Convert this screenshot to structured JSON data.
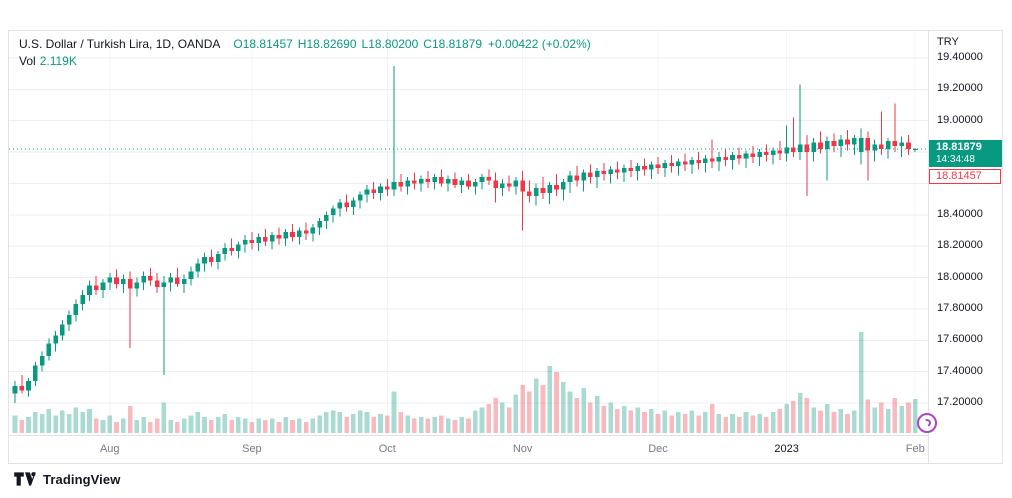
{
  "header": {
    "symbol_title": "U.S. Dollar / Turkish Lira, 1D, OANDA",
    "ohlc": {
      "o_label": "O",
      "o": "18.81457",
      "h_label": "H",
      "h": "18.82690",
      "l_label": "L",
      "l": "18.80200",
      "c_label": "C",
      "c": "18.81879",
      "change": "+0.00422 (+0.02%)"
    },
    "vol_label": "Vol",
    "vol_value": "2.119K"
  },
  "price_axis": {
    "currency": "TRY",
    "ticks": [
      {
        "v": 19.4,
        "label": "19.40000"
      },
      {
        "v": 19.2,
        "label": "19.20000"
      },
      {
        "v": 19.0,
        "label": "19.00000"
      },
      {
        "v": 18.4,
        "label": "18.40000"
      },
      {
        "v": 18.2,
        "label": "18.20000"
      },
      {
        "v": 18.0,
        "label": "18.00000"
      },
      {
        "v": 17.8,
        "label": "17.80000"
      },
      {
        "v": 17.6,
        "label": "17.60000"
      },
      {
        "v": 17.4,
        "label": "17.40000"
      },
      {
        "v": 17.2,
        "label": "17.20000"
      }
    ],
    "current_badge": {
      "price": "18.81879",
      "countdown": "14:34:48"
    },
    "open_badge": {
      "price": "18.81457"
    }
  },
  "time_axis": {
    "ticks": [
      {
        "label": "Aug",
        "index": 14,
        "year": false
      },
      {
        "label": "Sep",
        "index": 35,
        "year": false
      },
      {
        "label": "Oct",
        "index": 55,
        "year": false
      },
      {
        "label": "Nov",
        "index": 75,
        "year": false
      },
      {
        "label": "Dec",
        "index": 95,
        "year": false
      },
      {
        "label": "2023",
        "index": 114,
        "year": true
      },
      {
        "label": "Feb",
        "index": 133,
        "year": false
      }
    ]
  },
  "footer": {
    "brand": "TradingView"
  },
  "chart_data": {
    "type": "candlestick",
    "title": "U.S. Dollar / Turkish Lira",
    "symbol": "USD/TRY",
    "interval": "1D",
    "exchange": "OANDA",
    "legend_last_bar": {
      "open": 18.81457,
      "high": 18.8269,
      "low": 18.802,
      "close": 18.81879,
      "volume_k": 2.119,
      "change": 0.00422,
      "change_pct": 0.02
    },
    "current_price": 18.81879,
    "open_price_line": 18.81457,
    "y_axis": {
      "max": 19.4,
      "min": 17.2,
      "grid_step": 0.2,
      "grid_values": [
        19.4,
        19.2,
        19.0,
        18.8,
        18.6,
        18.4,
        18.2,
        18.0,
        17.8,
        17.6,
        17.4,
        17.2
      ]
    },
    "x_axis": {
      "months": [
        "Aug",
        "Sep",
        "Oct",
        "Nov",
        "Dec",
        "2023",
        "Feb"
      ],
      "grid": true
    },
    "colors": {
      "up": "#089981",
      "down": "#f23645",
      "vol_up": "rgba(8,153,129,0.35)",
      "vol_down": "rgba(242,54,69,0.35)",
      "current_line": "#089981",
      "grid": "#ebeef3"
    },
    "candles_format": [
      "open",
      "high",
      "low",
      "close",
      "volume_k"
    ],
    "candles": [
      [
        17.26,
        17.34,
        17.2,
        17.31,
        1.1
      ],
      [
        17.31,
        17.38,
        17.26,
        17.28,
        0.8
      ],
      [
        17.28,
        17.36,
        17.24,
        17.34,
        1.0
      ],
      [
        17.34,
        17.46,
        17.31,
        17.44,
        1.3
      ],
      [
        17.44,
        17.53,
        17.4,
        17.5,
        1.2
      ],
      [
        17.5,
        17.61,
        17.47,
        17.58,
        1.5
      ],
      [
        17.58,
        17.66,
        17.53,
        17.63,
        1.1
      ],
      [
        17.63,
        17.73,
        17.6,
        17.7,
        1.4
      ],
      [
        17.7,
        17.79,
        17.66,
        17.76,
        1.2
      ],
      [
        17.76,
        17.86,
        17.72,
        17.83,
        1.6
      ],
      [
        17.83,
        17.92,
        17.79,
        17.89,
        1.3
      ],
      [
        17.89,
        17.98,
        17.85,
        17.95,
        1.5
      ],
      [
        17.95,
        18.01,
        17.89,
        17.92,
        0.9
      ],
      [
        17.92,
        17.99,
        17.87,
        17.97,
        0.8
      ],
      [
        17.97,
        18.03,
        17.92,
        18.0,
        1.1
      ],
      [
        18.0,
        18.05,
        17.93,
        17.96,
        0.7
      ],
      [
        17.96,
        18.02,
        17.9,
        17.99,
        0.9
      ],
      [
        17.99,
        18.04,
        17.55,
        17.93,
        1.7
      ],
      [
        17.93,
        18.0,
        17.88,
        17.97,
        0.8
      ],
      [
        17.97,
        18.04,
        17.92,
        18.01,
        1.0
      ],
      [
        18.01,
        18.06,
        17.95,
        17.98,
        0.7
      ],
      [
        17.98,
        18.03,
        17.9,
        17.94,
        0.9
      ],
      [
        17.94,
        18.01,
        17.38,
        17.97,
        1.9
      ],
      [
        17.97,
        18.03,
        17.91,
        18.0,
        0.8
      ],
      [
        18.0,
        18.06,
        17.94,
        17.96,
        0.7
      ],
      [
        17.96,
        18.02,
        17.9,
        17.99,
        0.9
      ],
      [
        17.99,
        18.07,
        17.95,
        18.04,
        1.1
      ],
      [
        18.04,
        18.12,
        18.0,
        18.09,
        1.3
      ],
      [
        18.09,
        18.16,
        18.04,
        18.13,
        1.0
      ],
      [
        18.13,
        18.18,
        18.07,
        18.1,
        0.8
      ],
      [
        18.1,
        18.17,
        18.05,
        18.15,
        1.0
      ],
      [
        18.15,
        18.22,
        18.11,
        18.19,
        1.2
      ],
      [
        18.19,
        18.25,
        18.14,
        18.17,
        0.8
      ],
      [
        18.17,
        18.23,
        18.12,
        18.21,
        1.0
      ],
      [
        18.21,
        18.27,
        18.16,
        18.24,
        0.9
      ],
      [
        18.24,
        18.29,
        18.18,
        18.22,
        0.7
      ],
      [
        18.22,
        18.28,
        18.17,
        18.26,
        0.9
      ],
      [
        18.26,
        18.31,
        18.2,
        18.23,
        0.8
      ],
      [
        18.23,
        18.29,
        18.18,
        18.27,
        0.9
      ],
      [
        18.27,
        18.32,
        18.21,
        18.25,
        0.7
      ],
      [
        18.25,
        18.31,
        18.2,
        18.29,
        1.0
      ],
      [
        18.29,
        18.34,
        18.23,
        18.26,
        0.8
      ],
      [
        18.26,
        18.32,
        18.21,
        18.3,
        0.9
      ],
      [
        18.3,
        18.35,
        18.24,
        18.28,
        0.7
      ],
      [
        18.28,
        18.34,
        18.23,
        18.32,
        0.9
      ],
      [
        18.32,
        18.38,
        18.27,
        18.36,
        1.1
      ],
      [
        18.36,
        18.42,
        18.31,
        18.4,
        1.3
      ],
      [
        18.4,
        18.46,
        18.35,
        18.44,
        1.4
      ],
      [
        18.44,
        18.5,
        18.39,
        18.48,
        1.3
      ],
      [
        18.48,
        18.53,
        18.42,
        18.45,
        1.0
      ],
      [
        18.45,
        18.51,
        18.4,
        18.49,
        1.2
      ],
      [
        18.49,
        18.55,
        18.44,
        18.53,
        1.4
      ],
      [
        18.53,
        18.59,
        18.48,
        18.56,
        1.3
      ],
      [
        18.56,
        18.61,
        18.5,
        18.54,
        1.0
      ],
      [
        18.54,
        18.6,
        18.49,
        18.58,
        1.2
      ],
      [
        18.58,
        18.63,
        18.52,
        18.56,
        1.1
      ],
      [
        18.56,
        19.35,
        18.52,
        18.61,
        2.6
      ],
      [
        18.61,
        18.66,
        18.55,
        18.58,
        1.3
      ],
      [
        18.58,
        18.64,
        18.53,
        18.62,
        1.1
      ],
      [
        18.62,
        18.67,
        18.56,
        18.6,
        0.9
      ],
      [
        18.6,
        18.65,
        18.55,
        18.63,
        1.0
      ],
      [
        18.63,
        18.68,
        18.57,
        18.61,
        0.9
      ],
      [
        18.61,
        18.66,
        18.56,
        18.64,
        1.0
      ],
      [
        18.64,
        18.69,
        18.58,
        18.6,
        1.1
      ],
      [
        18.6,
        18.65,
        18.55,
        18.63,
        0.9
      ],
      [
        18.63,
        18.67,
        18.57,
        18.59,
        0.8
      ],
      [
        18.59,
        18.64,
        18.54,
        18.62,
        1.0
      ],
      [
        18.62,
        18.66,
        18.56,
        18.58,
        0.9
      ],
      [
        18.58,
        18.63,
        18.53,
        18.61,
        1.4
      ],
      [
        18.61,
        18.66,
        18.56,
        18.64,
        1.6
      ],
      [
        18.64,
        18.69,
        18.59,
        18.62,
        1.8
      ],
      [
        18.62,
        18.67,
        18.48,
        18.57,
        2.2
      ],
      [
        18.57,
        18.63,
        18.52,
        18.6,
        1.9
      ],
      [
        18.6,
        18.65,
        18.55,
        18.58,
        1.6
      ],
      [
        18.58,
        18.64,
        18.53,
        18.62,
        2.4
      ],
      [
        18.62,
        18.68,
        18.3,
        18.55,
        3.0
      ],
      [
        18.55,
        18.62,
        18.48,
        18.52,
        2.6
      ],
      [
        18.52,
        18.6,
        18.46,
        18.57,
        3.4
      ],
      [
        18.57,
        18.64,
        18.5,
        18.54,
        3.0
      ],
      [
        18.54,
        18.61,
        18.47,
        18.59,
        4.2
      ],
      [
        18.59,
        18.66,
        18.52,
        18.56,
        3.8
      ],
      [
        18.56,
        18.63,
        18.49,
        18.61,
        3.2
      ],
      [
        18.61,
        18.68,
        18.54,
        18.65,
        2.6
      ],
      [
        18.65,
        18.71,
        18.58,
        18.62,
        2.2
      ],
      [
        18.62,
        18.69,
        18.55,
        18.67,
        2.8
      ],
      [
        18.67,
        18.72,
        18.6,
        18.64,
        1.9
      ],
      [
        18.64,
        18.7,
        18.57,
        18.68,
        2.3
      ],
      [
        18.68,
        18.73,
        18.62,
        18.66,
        1.7
      ],
      [
        18.66,
        18.71,
        18.6,
        18.69,
        1.9
      ],
      [
        18.69,
        18.74,
        18.63,
        18.67,
        1.5
      ],
      [
        18.67,
        18.72,
        18.61,
        18.7,
        1.7
      ],
      [
        18.7,
        18.75,
        18.64,
        18.68,
        1.4
      ],
      [
        18.68,
        18.73,
        18.62,
        18.71,
        1.6
      ],
      [
        18.71,
        18.76,
        18.65,
        18.69,
        1.3
      ],
      [
        18.69,
        18.74,
        18.63,
        18.72,
        1.5
      ],
      [
        18.72,
        18.77,
        18.66,
        18.7,
        1.2
      ],
      [
        18.7,
        18.75,
        18.64,
        18.73,
        1.4
      ],
      [
        18.73,
        18.78,
        18.67,
        18.71,
        1.1
      ],
      [
        18.71,
        18.76,
        18.65,
        18.74,
        1.3
      ],
      [
        18.74,
        18.79,
        18.68,
        18.72,
        1.2
      ],
      [
        18.72,
        18.77,
        18.66,
        18.75,
        1.4
      ],
      [
        18.75,
        18.8,
        18.69,
        18.73,
        1.1
      ],
      [
        18.73,
        18.78,
        18.67,
        18.76,
        1.3
      ],
      [
        18.76,
        18.88,
        18.7,
        18.74,
        1.8
      ],
      [
        18.74,
        18.8,
        18.68,
        18.77,
        1.2
      ],
      [
        18.77,
        18.82,
        18.71,
        18.75,
        1.0
      ],
      [
        18.75,
        18.8,
        18.69,
        18.78,
        1.2
      ],
      [
        18.78,
        18.83,
        18.72,
        18.76,
        1.0
      ],
      [
        18.76,
        18.81,
        18.7,
        18.79,
        1.3
      ],
      [
        18.79,
        18.84,
        18.73,
        18.77,
        1.1
      ],
      [
        18.77,
        18.82,
        18.71,
        18.8,
        1.2
      ],
      [
        18.8,
        18.85,
        18.74,
        18.78,
        1.0
      ],
      [
        18.78,
        18.83,
        18.72,
        18.81,
        1.3
      ],
      [
        18.81,
        18.87,
        18.75,
        18.79,
        1.5
      ],
      [
        18.79,
        18.97,
        18.74,
        18.83,
        1.8
      ],
      [
        18.83,
        19.02,
        18.77,
        18.8,
        2.0
      ],
      [
        18.8,
        19.23,
        18.75,
        18.85,
        2.5
      ],
      [
        18.85,
        18.91,
        18.52,
        18.8,
        2.2
      ],
      [
        18.8,
        18.89,
        18.74,
        18.86,
        1.6
      ],
      [
        18.86,
        18.93,
        18.79,
        18.82,
        1.4
      ],
      [
        18.82,
        18.9,
        18.62,
        18.87,
        1.8
      ],
      [
        18.87,
        18.92,
        18.8,
        18.84,
        1.3
      ],
      [
        18.84,
        18.91,
        18.77,
        18.88,
        1.5
      ],
      [
        18.88,
        18.94,
        18.81,
        18.85,
        1.2
      ],
      [
        18.85,
        18.91,
        18.78,
        18.89,
        1.4
      ],
      [
        18.8,
        18.95,
        18.72,
        18.89,
        6.3
      ],
      [
        18.89,
        18.93,
        18.62,
        18.81,
        2.1
      ],
      [
        18.81,
        18.88,
        18.74,
        18.85,
        1.6
      ],
      [
        18.85,
        19.06,
        18.78,
        18.82,
        1.9
      ],
      [
        18.82,
        18.89,
        18.76,
        18.87,
        1.5
      ],
      [
        18.87,
        19.11,
        18.8,
        18.84,
        2.2
      ],
      [
        18.84,
        18.9,
        18.77,
        18.86,
        1.7
      ],
      [
        18.86,
        18.91,
        18.78,
        18.82,
        1.9
      ],
      [
        18.81457,
        18.8269,
        18.802,
        18.81879,
        2.119
      ]
    ]
  }
}
